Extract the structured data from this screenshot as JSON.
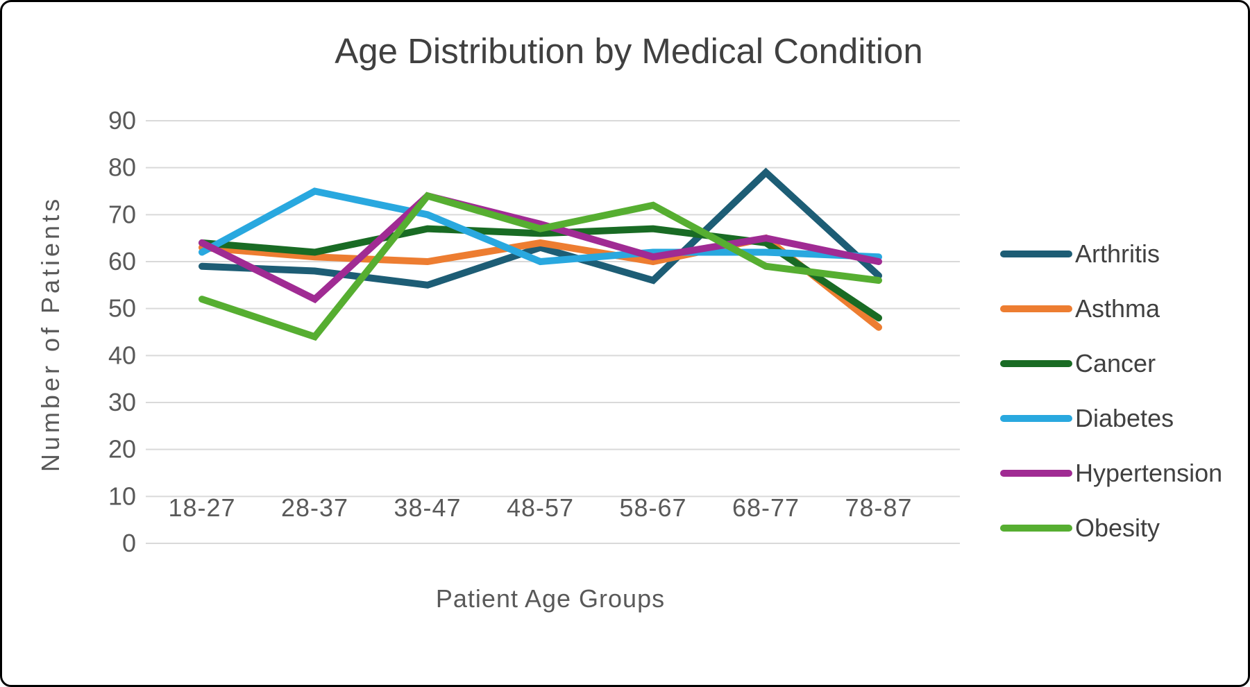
{
  "chart_data": {
    "type": "line",
    "title": "Age Distribution by Medical Condition",
    "xlabel": "Patient Age Groups",
    "ylabel": "Number of Patients",
    "categories": [
      "18-27",
      "28-37",
      "38-47",
      "48-57",
      "58-67",
      "68-77",
      "78-87"
    ],
    "series": [
      {
        "name": "Arthritis",
        "color": "#1D5D75",
        "values": [
          59,
          58,
          55,
          63,
          56,
          79,
          57
        ]
      },
      {
        "name": "Asthma",
        "color": "#ED7D31",
        "values": [
          63,
          61,
          60,
          64,
          60,
          65,
          46
        ]
      },
      {
        "name": "Cancer",
        "color": "#196B24",
        "values": [
          64,
          62,
          67,
          66,
          67,
          64,
          48
        ]
      },
      {
        "name": "Diabetes",
        "color": "#29A8DF",
        "values": [
          62,
          75,
          70,
          60,
          62,
          62,
          61
        ]
      },
      {
        "name": "Hypertension",
        "color": "#A02B93",
        "values": [
          64,
          52,
          74,
          68,
          61,
          65,
          60
        ]
      },
      {
        "name": "Obesity",
        "color": "#56AE31",
        "values": [
          52,
          44,
          74,
          67,
          72,
          59,
          56
        ]
      }
    ],
    "ylim": [
      0,
      90
    ],
    "ytick_step": 10,
    "yticks": [
      "0",
      "10",
      "20",
      "30",
      "40",
      "50",
      "60",
      "70",
      "80",
      "90"
    ],
    "grid": "horizontal",
    "gridline_color": "#D9D9D9",
    "tick_label_color": "#595959",
    "title_color": "#404040",
    "legend_text_color": "#404040",
    "legend_position": "right",
    "legend_labels": [
      "Arthritis",
      "Asthma",
      "Cancer",
      "Diabetes",
      "Hypertension",
      "Obesity"
    ]
  }
}
